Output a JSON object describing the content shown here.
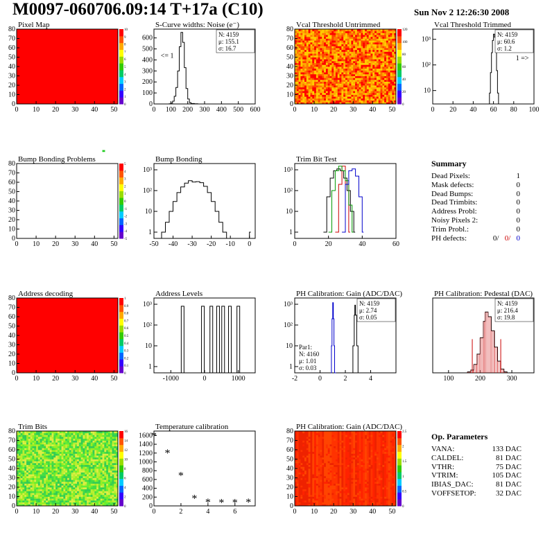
{
  "header": {
    "title": "M0097-060706.09:14 T+17a (C10)",
    "date": "Sun Nov  2 12:26:30 2008"
  },
  "summary": {
    "title": "Summary",
    "rows": [
      {
        "label": "Dead Pixels:",
        "value": "1"
      },
      {
        "label": "Mask defects:",
        "value": "0"
      },
      {
        "label": "Dead Bumps:",
        "value": "0"
      },
      {
        "label": "Dead Trimbits:",
        "value": "0"
      },
      {
        "label": "Address Probl:",
        "value": "0"
      },
      {
        "label": "Noisy Pixels 2:",
        "value": "0"
      },
      {
        "label": "Trim Probl.:",
        "value": "0"
      }
    ],
    "ph_defects": {
      "label": "PH defects:",
      "values": [
        "0/",
        "0/",
        "0"
      ],
      "colors": [
        "#000000",
        "#cc0000",
        "#0000cc"
      ]
    }
  },
  "op_params": {
    "title": "Op. Parameters",
    "rows": [
      {
        "label": "VANA:",
        "value": "133 DAC"
      },
      {
        "label": "CALDEL:",
        "value": "81 DAC"
      },
      {
        "label": "VTHR:",
        "value": "75 DAC"
      },
      {
        "label": "VTRIM:",
        "value": "105 DAC"
      },
      {
        "label": "IBIAS_DAC:",
        "value": "81 DAC"
      },
      {
        "label": "VOFFSETOP:",
        "value": "32 DAC"
      }
    ]
  },
  "chart_data": [
    {
      "type": "heatmap",
      "title": "Pixel Map",
      "xlim": [
        0,
        52
      ],
      "ylim": [
        0,
        80
      ],
      "xticks": [
        0,
        10,
        20,
        30,
        40,
        50
      ],
      "yticks": [
        0,
        10,
        20,
        30,
        40,
        50,
        60,
        70,
        80
      ],
      "base": "uniform",
      "fill": "#ff0000",
      "hot": [
        {
          "x": 45,
          "y": 58,
          "color": "#ffffff"
        }
      ],
      "zscale": {
        "ticks": [
          "0",
          "1",
          "2",
          "3",
          "4",
          "5",
          "6",
          "7",
          "8",
          "9",
          "10"
        ]
      }
    },
    {
      "type": "line",
      "title": "S-Curve widths: Noise (e⁻)",
      "xlim": [
        0,
        600
      ],
      "ylim": [
        0,
        680
      ],
      "xticks": [
        0,
        100,
        200,
        300,
        400,
        500,
        600
      ],
      "yticks": [
        0,
        100,
        200,
        300,
        400,
        500,
        600
      ],
      "stats": [
        {
          "text": "N: 4159",
          "color": "#000"
        },
        {
          "text": "μ: 155.1",
          "color": "#000"
        },
        {
          "text": "σ: 16.7",
          "color": "#000"
        }
      ],
      "annotations": [
        {
          "text": "<= 1",
          "x": 40,
          "y": 420
        }
      ],
      "series": [
        {
          "color": "#000000",
          "x": [
            80,
            90,
            100,
            110,
            120,
            130,
            140,
            150,
            160,
            170,
            180,
            190,
            200,
            210,
            220,
            240,
            260
          ],
          "y": [
            0,
            2,
            8,
            25,
            70,
            150,
            300,
            520,
            650,
            560,
            330,
            140,
            45,
            12,
            4,
            2,
            0
          ]
        }
      ]
    },
    {
      "type": "heatmap",
      "title": "Vcal Threshold Untrimmed",
      "xlim": [
        0,
        52
      ],
      "ylim": [
        0,
        80
      ],
      "xticks": [
        0,
        10,
        20,
        30,
        40,
        50
      ],
      "yticks": [
        0,
        10,
        20,
        30,
        40,
        50,
        60,
        70,
        80
      ],
      "base": "noise",
      "palette": [
        "#ff0000",
        "#ff4400",
        "#ff7700",
        "#ffaa00",
        "#ffcc00"
      ],
      "hot": [],
      "zscale": {
        "ticks": [
          "0",
          "20",
          "40",
          "60",
          "80",
          "100",
          "120"
        ]
      }
    },
    {
      "type": "line",
      "title": "Vcal Threshold Trimmed",
      "log": true,
      "xlim": [
        0,
        100
      ],
      "ylim": [
        3,
        2500
      ],
      "xticks": [
        0,
        20,
        40,
        60,
        80,
        100
      ],
      "ytickvals": [
        10,
        100,
        1000
      ],
      "yticklabels": [
        "10",
        "10²",
        "10³"
      ],
      "stats": [
        {
          "text": "N: 4159",
          "color": "#000"
        },
        {
          "text": "μ: 60.6",
          "color": "#000"
        },
        {
          "text": "σ:  1.2",
          "color": "#000"
        }
      ],
      "annotations": [
        {
          "text": "1 =>",
          "x": 82,
          "y": 150
        }
      ],
      "series": [
        {
          "color": "#000000",
          "x": [
            55,
            56,
            57,
            58,
            59,
            60,
            61,
            62,
            63,
            64,
            65
          ],
          "y": [
            3,
            8,
            50,
            300,
            900,
            1600,
            1200,
            400,
            60,
            8,
            3
          ]
        }
      ]
    },
    {
      "type": "heatmap",
      "title": "Bump Bonding Problems",
      "xlim": [
        0,
        52
      ],
      "ylim": [
        0,
        80
      ],
      "xticks": [
        0,
        10,
        20,
        30,
        40,
        50
      ],
      "yticks": [
        0,
        10,
        20,
        30,
        40,
        50,
        60,
        70,
        80
      ],
      "base": "empty",
      "fill": "#ffffff",
      "hot": [
        {
          "x": 44,
          "y": 58,
          "color": "#22cc22"
        }
      ],
      "zscale": {
        "ticks": [
          "-5",
          "-4",
          "-3",
          "-2",
          "-1",
          "0",
          "1",
          "2",
          "3",
          "4",
          "5"
        ]
      }
    },
    {
      "type": "line",
      "title": "Bump Bonding",
      "log": true,
      "xlim": [
        -50,
        3
      ],
      "ylim": [
        0.5,
        2000
      ],
      "xticks": [
        -50,
        -40,
        -30,
        -20,
        -10,
        0
      ],
      "ytickvals": [
        1,
        10,
        100,
        1000
      ],
      "yticklabels": [
        "1",
        "10",
        "10²",
        "10³"
      ],
      "series": [
        {
          "color": "#000000",
          "x": [
            -48,
            -46,
            -44,
            -42,
            -40,
            -38,
            -36,
            -34,
            -32,
            -30,
            -28,
            -26,
            -24,
            -22,
            -20,
            -18,
            -16,
            -14,
            -12,
            -2,
            0
          ],
          "y": [
            0.5,
            1,
            3,
            10,
            30,
            80,
            150,
            230,
            300,
            260,
            270,
            240,
            160,
            80,
            30,
            10,
            3,
            1,
            0.5,
            0.5,
            1
          ]
        }
      ]
    },
    {
      "type": "line",
      "title": "Trim Bit Test",
      "log": true,
      "xlim": [
        0,
        60
      ],
      "ylim": [
        0.5,
        2000
      ],
      "xticks": [
        0,
        20,
        40,
        60
      ],
      "ytickvals": [
        1,
        10,
        100,
        1000
      ],
      "yticklabels": [
        "1",
        "10",
        "10²",
        "10³"
      ],
      "series": [
        {
          "color": "#000000",
          "x": [
            17,
            19,
            21,
            23,
            25,
            27,
            29,
            31,
            33,
            35
          ],
          "y": [
            1,
            50,
            400,
            900,
            1100,
            900,
            400,
            100,
            10,
            1
          ]
        },
        {
          "color": "#cc0000",
          "x": [
            24,
            26,
            28,
            30,
            32
          ],
          "y": [
            1,
            200,
            1500,
            200,
            1
          ]
        },
        {
          "color": "#009900",
          "x": [
            20,
            22,
            24,
            26,
            28,
            30,
            32,
            34
          ],
          "y": [
            1,
            100,
            900,
            1500,
            900,
            300,
            20,
            1
          ]
        },
        {
          "color": "#0000cc",
          "x": [
            28,
            30,
            32,
            34,
            36,
            38,
            40
          ],
          "y": [
            1,
            200,
            900,
            1100,
            500,
            50,
            1
          ]
        }
      ]
    },
    {
      "type": "heatmap",
      "title": "Address decoding",
      "xlim": [
        0,
        52
      ],
      "ylim": [
        0,
        80
      ],
      "xticks": [
        0,
        10,
        20,
        30,
        40,
        50
      ],
      "yticks": [
        0,
        10,
        20,
        30,
        40,
        50,
        60,
        70,
        80
      ],
      "base": "uniform",
      "fill": "#ff0000",
      "hot": [
        {
          "x": 45,
          "y": 58,
          "color": "#ffffff"
        }
      ],
      "zscale": {
        "ticks": [
          "0",
          "0.1",
          "0.2",
          "0.3",
          "0.4",
          "0.5",
          "0.6",
          "0.7",
          "0.8",
          "0.9",
          "1"
        ]
      }
    },
    {
      "type": "line",
      "title": "Address Levels",
      "log": true,
      "xlim": [
        -1500,
        1500
      ],
      "ylim": [
        0.5,
        2000
      ],
      "xticks": [
        -1000,
        0,
        1000
      ],
      "ytickvals": [
        1,
        10,
        100,
        1000
      ],
      "yticklabels": [
        "1",
        "10",
        "10²",
        "10³"
      ],
      "series": [
        {
          "color": "#000000",
          "spikes": [
            -650,
            -50,
            200,
            400,
            550,
            750,
            1000
          ],
          "peak": 800
        }
      ]
    },
    {
      "type": "line",
      "title": "PH Calibration: Gain (ADC/DAC)",
      "log": true,
      "xlim": [
        -2,
        6
      ],
      "ylim": [
        0.5,
        2000
      ],
      "xticks": [
        -2,
        0,
        2,
        4
      ],
      "ytickvals": [
        1,
        10,
        100,
        1000
      ],
      "yticklabels": [
        "1",
        "10",
        "10²",
        "10³"
      ],
      "stats": [
        {
          "text": "N: 4159",
          "color": "#000"
        },
        {
          "text": "μ: 2.74",
          "color": "#000"
        },
        {
          "text": "σ: 0.05",
          "color": "#000"
        }
      ],
      "stats2": [
        {
          "text": "Par1:",
          "color": "#0000cc"
        },
        {
          "text": "N: 4160",
          "color": "#0000cc"
        },
        {
          "text": "μ: 1.01",
          "color": "#0000cc"
        },
        {
          "text": "σ: 0.03",
          "color": "#0000cc"
        }
      ],
      "series": [
        {
          "color": "#000000",
          "x": [
            2.5,
            2.6,
            2.7,
            2.75,
            2.8,
            2.9,
            3.0
          ],
          "y": [
            0.5,
            10,
            300,
            900,
            300,
            10,
            0.5
          ]
        },
        {
          "color": "#0000cc",
          "x": [
            0.85,
            0.9,
            0.95,
            1.0,
            1.05,
            1.1,
            1.15
          ],
          "y": [
            0.5,
            10,
            200,
            1200,
            200,
            10,
            0.5
          ]
        }
      ]
    },
    {
      "type": "line",
      "title": "PH Calibration: Pedestal (DAC)",
      "xlim": [
        50,
        370
      ],
      "ylim": [
        0,
        160
      ],
      "xticks": [
        100,
        200,
        300
      ],
      "yticks": [],
      "stats": [
        {
          "text": "N: 4159",
          "color": "#000"
        },
        {
          "text": "μ: 216.4",
          "color": "#cc0000"
        },
        {
          "text": "σ: 19.8",
          "color": "#cc0000"
        }
      ],
      "markers": [
        175,
        265
      ],
      "series": [
        {
          "color": "#000000",
          "x": [
            150,
            160,
            170,
            180,
            190,
            200,
            210,
            216,
            225,
            235,
            245,
            255,
            265,
            275,
            285
          ],
          "y": [
            0,
            2,
            6,
            18,
            40,
            75,
            110,
            130,
            120,
            90,
            55,
            25,
            8,
            2,
            0
          ]
        }
      ]
    },
    {
      "type": "heatmap",
      "title": "Trim Bits",
      "xlim": [
        0,
        52
      ],
      "ylim": [
        0,
        80
      ],
      "xticks": [
        0,
        10,
        20,
        30,
        40,
        50
      ],
      "yticks": [
        0,
        10,
        20,
        30,
        40,
        50,
        60,
        70,
        80
      ],
      "base": "noise",
      "palette": [
        "#44dd44",
        "#66ee33",
        "#99ee22",
        "#bbee33",
        "#33cc55",
        "#ddee44"
      ],
      "hot": [],
      "zscale": {
        "ticks": [
          "0",
          "2",
          "4",
          "6",
          "8",
          "10",
          "12",
          "14",
          "16"
        ]
      }
    },
    {
      "type": "scatter",
      "title": "Temperature calibration",
      "xlim": [
        0,
        7.5
      ],
      "ylim": [
        0,
        1700
      ],
      "xticks": [
        0,
        2,
        4,
        6
      ],
      "yticks": [
        0,
        200,
        400,
        600,
        800,
        1000,
        1200,
        1400,
        1600
      ],
      "points": [
        [
          0,
          1620
        ],
        [
          1,
          1230
        ],
        [
          2,
          720
        ],
        [
          3,
          200
        ],
        [
          4,
          110
        ],
        [
          5,
          100
        ],
        [
          6,
          100
        ],
        [
          7,
          110
        ]
      ]
    },
    {
      "type": "heatmap",
      "title": "PH Calibration: Gain (ADC/DAC)",
      "xlim": [
        0,
        52
      ],
      "ylim": [
        0,
        80
      ],
      "xticks": [
        0,
        10,
        20,
        30,
        40,
        50
      ],
      "yticks": [
        0,
        10,
        20,
        30,
        40,
        50,
        60,
        70,
        80
      ],
      "base": "columns",
      "palette": [
        "#ff2200",
        "#ff3300",
        "#ee2200",
        "#ff4400"
      ],
      "hot": [
        {
          "x": 45,
          "y": 58,
          "color": "#ffffff"
        }
      ],
      "zscale": {
        "ticks": [
          "0",
          "0.5",
          "1",
          "1.5",
          "2",
          "2.5"
        ]
      }
    }
  ]
}
